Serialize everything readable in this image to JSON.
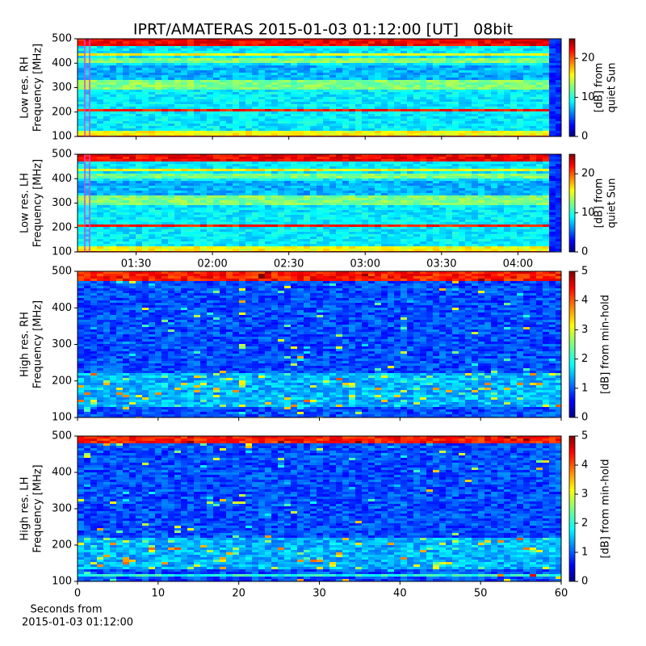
{
  "chart_data": [
    {
      "type": "heatmap",
      "title": "IPRT/AMATERAS 2015-01-03 01:12:00 [UT]   08bit",
      "ylabel": [
        "Low res. RH",
        "Frequency [MHz]"
      ],
      "ylim": [
        100,
        500
      ],
      "yticks": [
        100,
        200,
        300,
        400,
        500
      ],
      "colorbar_label": [
        "[dB] from",
        "quiet Sun"
      ],
      "clim": [
        0,
        25
      ],
      "cticks": [
        0,
        10,
        20
      ],
      "colormap": "jet"
    },
    {
      "type": "heatmap",
      "ylabel": [
        "Low res. LH",
        "Frequency [MHz]"
      ],
      "ylim": [
        100,
        500
      ],
      "yticks": [
        100,
        200,
        300,
        400,
        500
      ],
      "xlim": [
        "01:07",
        "04:17"
      ],
      "xticks": [
        "01:30",
        "02:00",
        "02:30",
        "03:00",
        "03:30",
        "04:00"
      ],
      "colorbar_label": [
        "[dB] from",
        "quiet Sun"
      ],
      "clim": [
        0,
        25
      ],
      "cticks": [
        0,
        10,
        20
      ],
      "colormap": "jet"
    },
    {
      "type": "heatmap",
      "ylabel": [
        "High res. RH",
        "Frequency [MHz]"
      ],
      "ylim": [
        100,
        500
      ],
      "yticks": [
        100,
        200,
        300,
        400,
        500
      ],
      "colorbar_label": [
        "[dB] from min-hold"
      ],
      "clim": [
        0,
        5
      ],
      "cticks": [
        0,
        1,
        2,
        3,
        4,
        5
      ],
      "colormap": "jet"
    },
    {
      "type": "heatmap",
      "ylabel": [
        "High res. LH",
        "Frequency [MHz]"
      ],
      "ylim": [
        100,
        500
      ],
      "yticks": [
        100,
        200,
        300,
        400,
        500
      ],
      "xlim": [
        0,
        60
      ],
      "xticks": [
        0,
        10,
        20,
        30,
        40,
        50,
        60
      ],
      "xlabel": [
        "Seconds from",
        "2015-01-03 01:12:00"
      ],
      "colorbar_label": [
        "[dB] from min-hold"
      ],
      "clim": [
        0,
        5
      ],
      "cticks": [
        0,
        1,
        2,
        3,
        4,
        5
      ],
      "colormap": "jet"
    }
  ]
}
